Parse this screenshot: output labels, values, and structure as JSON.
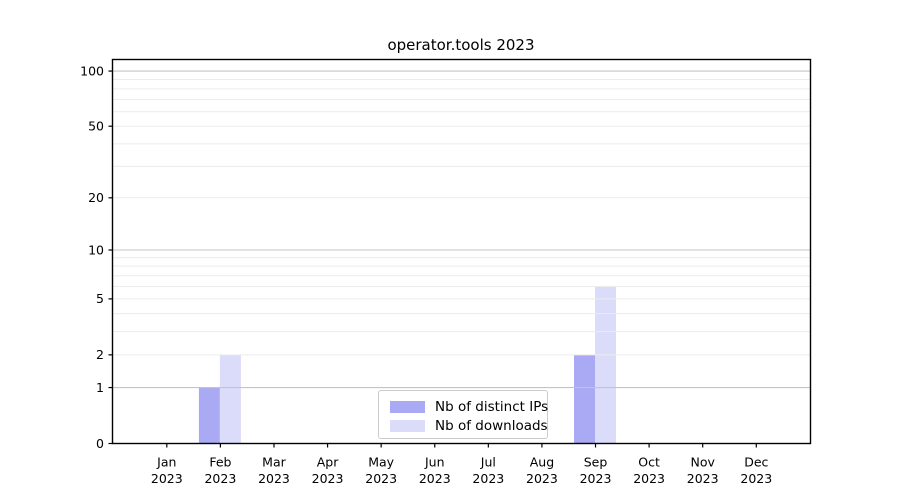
{
  "chart_data": {
    "type": "bar",
    "title": "operator.tools 2023",
    "categories": [
      "Jan",
      "Feb",
      "Mar",
      "Apr",
      "May",
      "Jun",
      "Jul",
      "Aug",
      "Sep",
      "Oct",
      "Nov",
      "Dec"
    ],
    "category_year_label": "2023",
    "series": [
      {
        "name": "Nb of distinct IPs",
        "color": "#a9a9f4",
        "values": [
          0,
          1,
          0,
          0,
          0,
          0,
          0,
          0,
          2,
          0,
          0,
          0
        ]
      },
      {
        "name": "Nb of downloads",
        "color": "#dbdbfa",
        "values": [
          0,
          2,
          0,
          0,
          0,
          0,
          0,
          0,
          6,
          0,
          0,
          0
        ]
      }
    ],
    "yscale": "log1p",
    "ylim": [
      0,
      116
    ],
    "yticks": [
      0,
      1,
      2,
      5,
      10,
      20,
      50,
      100
    ],
    "major_gridlines": [
      1,
      10,
      100
    ],
    "minor_gridlines": [
      2,
      3,
      4,
      5,
      6,
      7,
      8,
      9,
      20,
      30,
      40,
      50,
      60,
      70,
      80,
      90
    ],
    "grid": true,
    "legend_position": "lower center",
    "colors": {
      "axis": "#000000",
      "major_grid": "#c4c4c4",
      "minor_grid": "#ececec",
      "legend_border": "#cccccc",
      "background": "#ffffff"
    }
  }
}
